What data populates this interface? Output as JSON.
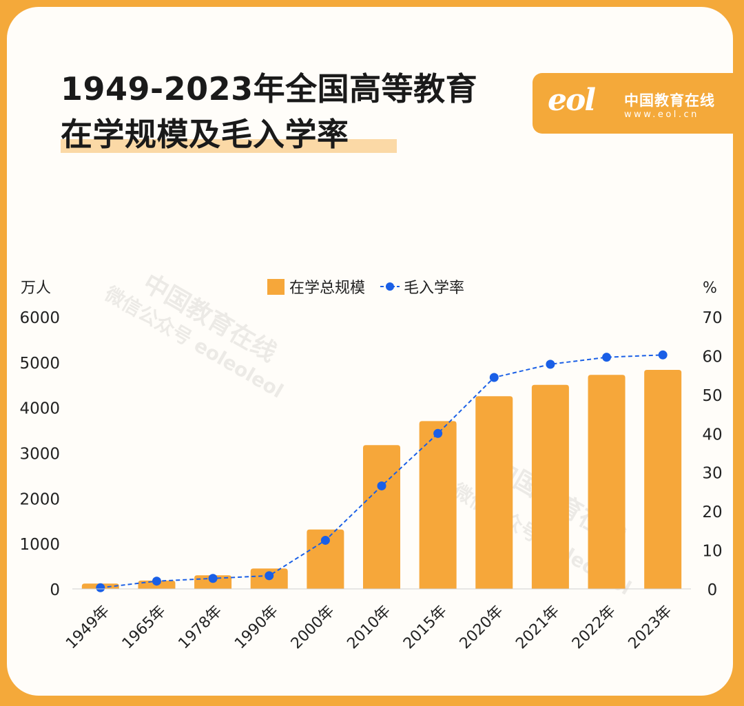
{
  "title": {
    "line1": "1949-2023年全国高等教育",
    "line2": "在学规模及毛入学率"
  },
  "logo": {
    "mark": "eol",
    "name": "中国教育在线",
    "url": "www.eol.cn"
  },
  "watermark": {
    "line1": "中国教育在线",
    "line2": "微信公众号 eoleoleol"
  },
  "colors": {
    "accent": "#f4a93a",
    "bar": "#f6a73a",
    "line": "#1a5fe6",
    "highlight": "#fbd9a6"
  },
  "chart_data": {
    "type": "bar",
    "categories": [
      "1949年",
      "1965年",
      "1978年",
      "1990年",
      "2000年",
      "2010年",
      "2015年",
      "2020年",
      "2021年",
      "2022年",
      "2023年"
    ],
    "series": [
      {
        "name": "在学总规模",
        "type": "bar",
        "axis": "left",
        "values": [
          117,
          185,
          300,
          450,
          1310,
          3170,
          3700,
          4250,
          4500,
          4720,
          4830
        ]
      },
      {
        "name": "毛入学率",
        "type": "line",
        "axis": "right",
        "style": "dashed",
        "values": [
          0.3,
          2.0,
          2.7,
          3.4,
          12.5,
          26.5,
          40.0,
          54.4,
          57.8,
          59.6,
          60.2
        ]
      }
    ],
    "yleft": {
      "label": "万人",
      "ylim": [
        0,
        6000
      ],
      "ticks": [
        "0",
        "1000",
        "2000",
        "3000",
        "4000",
        "5000",
        "6000"
      ]
    },
    "yright": {
      "label": "%",
      "ylim": [
        0,
        70
      ],
      "ticks": [
        "0",
        "10",
        "20",
        "30",
        "40",
        "50",
        "60",
        "70"
      ]
    },
    "legend": "top-center",
    "grid": false
  }
}
